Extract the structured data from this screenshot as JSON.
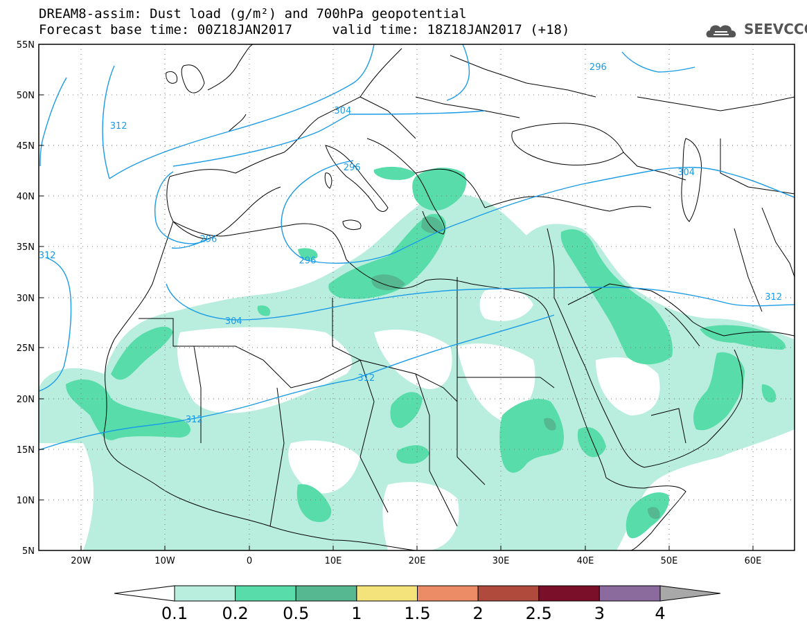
{
  "title": {
    "line1": "DREAM8-assim: Dust load (g/m²) and 700hPa geopotential",
    "line2": "Forecast base time: 00Z18JAN2017     valid time: 18Z18JAN2017 (+18)"
  },
  "logo": {
    "text": "SEEVCCC",
    "icon": "cloud-logo-icon"
  },
  "axes": {
    "lat_labels": [
      "55N",
      "50N",
      "45N",
      "40N",
      "35N",
      "30N",
      "25N",
      "20N",
      "15N",
      "10N",
      "5N"
    ],
    "lon_labels": [
      "20W",
      "10W",
      "0",
      "10E",
      "20E",
      "30E",
      "40E",
      "50E",
      "60E"
    ]
  },
  "contour_labels": [
    {
      "text": "312",
      "lon": -15.5,
      "lat": 46.8
    },
    {
      "text": "304",
      "lon": 11.2,
      "lat": 48.3
    },
    {
      "text": "296",
      "lon": 41.6,
      "lat": 52.6
    },
    {
      "text": "296",
      "lon": 12.3,
      "lat": 42.7
    },
    {
      "text": "304",
      "lon": 52.1,
      "lat": 42.2
    },
    {
      "text": "296",
      "lon": -4.8,
      "lat": 35.6
    },
    {
      "text": "312",
      "lon": -24.0,
      "lat": 34.0
    },
    {
      "text": "296",
      "lon": 7.0,
      "lat": 33.5
    },
    {
      "text": "304",
      "lon": -1.8,
      "lat": 27.5
    },
    {
      "text": "312",
      "lon": 62.5,
      "lat": 29.9
    },
    {
      "text": "312",
      "lon": 14.0,
      "lat": 21.9
    },
    {
      "text": "312",
      "lon": -6.5,
      "lat": 17.8
    }
  ],
  "colorbar": {
    "labels": [
      "0.1",
      "0.2",
      "0.5",
      "1",
      "1.5",
      "2",
      "2.5",
      "3",
      "4"
    ],
    "colors": [
      "#b9eedf",
      "#57dcaa",
      "#55b890",
      "#f4e27a",
      "#eb8c66",
      "#b04a3d",
      "#7a0f2a",
      "#8b6a9e"
    ],
    "low_color": "#ffffff",
    "high_color": "#a8a8a8"
  },
  "colors": {
    "contour": "#1a9be6",
    "coast": "#000000",
    "dust_low": "#b9eedf",
    "dust_mid": "#57dcaa",
    "dust_high": "#55b890"
  }
}
